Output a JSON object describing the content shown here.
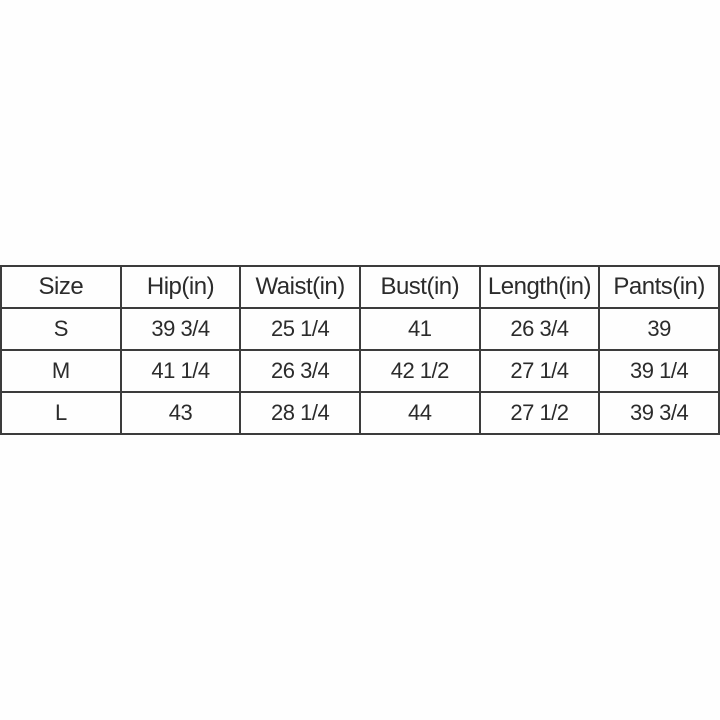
{
  "colors": {
    "background": "#fefefe",
    "border": "#3c3c3c",
    "text": "#2b2b2b"
  },
  "size_chart": {
    "columns": [
      "Size",
      "Hip(in)",
      "Waist(in)",
      "Bust(in)",
      "Length(in)",
      "Pants(in)"
    ],
    "rows": [
      [
        "S",
        "39 3/4",
        "25 1/4",
        "41",
        "26 3/4",
        "39"
      ],
      [
        "M",
        "41 1/4",
        "26 3/4",
        "42 1/2",
        "27 1/4",
        "39 1/4"
      ],
      [
        "L",
        "43",
        "28 1/4",
        "44",
        "27 1/2",
        "39 3/4"
      ]
    ]
  }
}
